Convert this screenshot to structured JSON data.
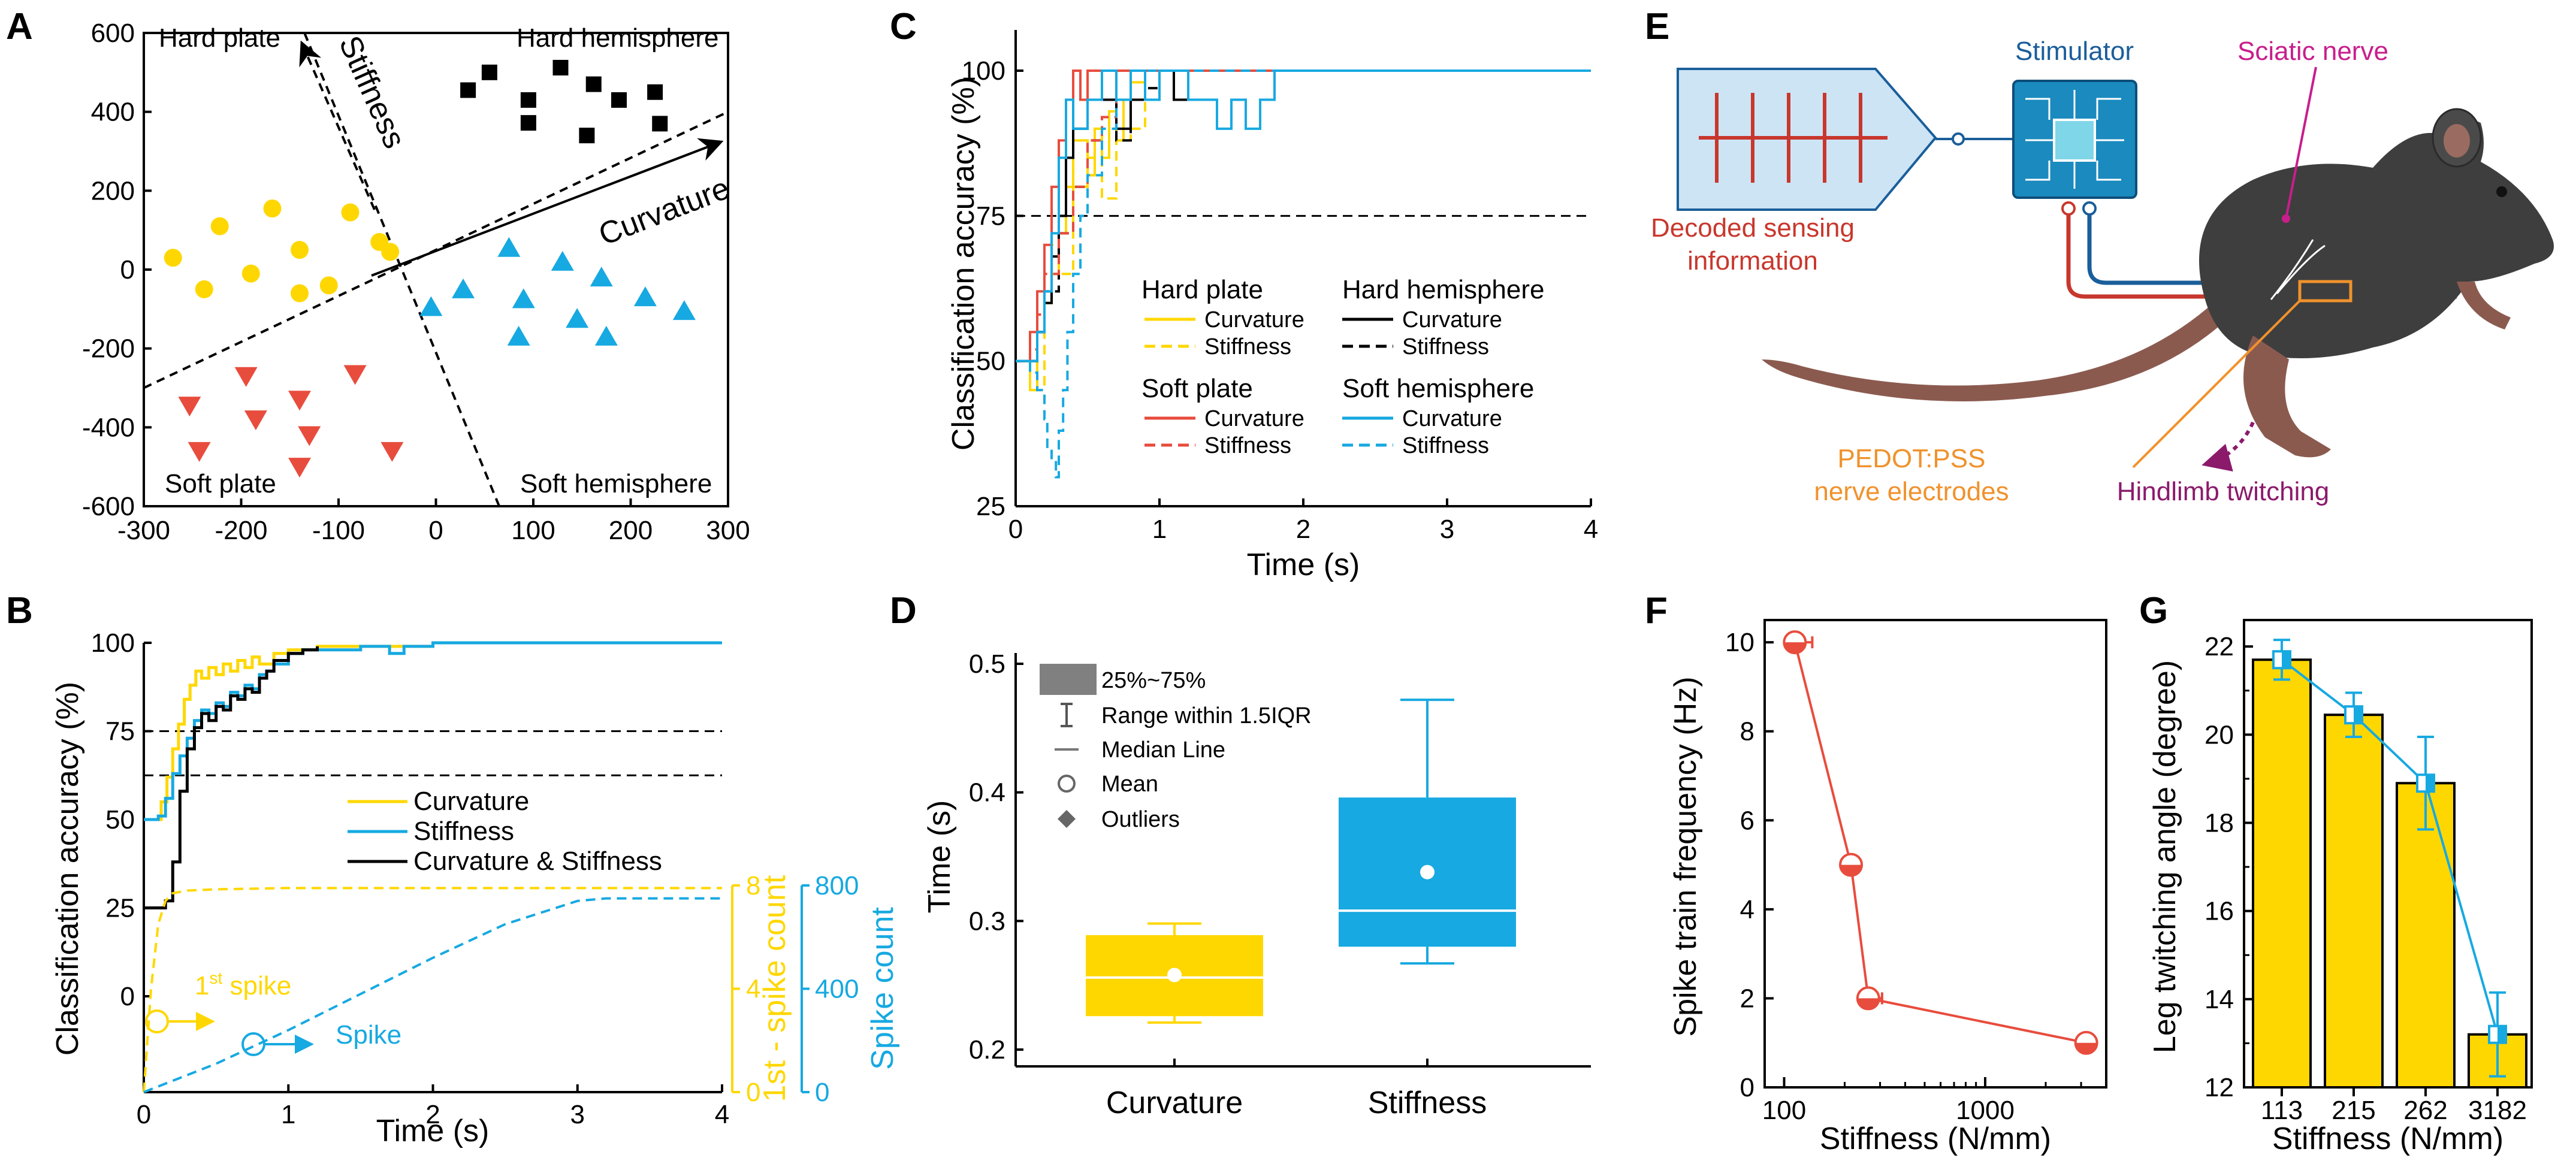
{
  "colors": {
    "hard_plate": "#FFD700",
    "hard_hemisphere": "#000000",
    "soft_plate": "#E84C3D",
    "soft_hemisphere": "#17A9E1",
    "orange": "#F0922C",
    "stim_blue": "#1A5E9A",
    "nerve_magenta": "#C81E8C",
    "twitch_purple": "#8B1A6B",
    "decoded_red": "#C8372D"
  },
  "panel_labels": {
    "a": "A",
    "b": "B",
    "c": "C",
    "d": "D",
    "e": "E",
    "f": "F",
    "g": "G"
  },
  "chart_data": [
    {
      "panel": "A",
      "type": "scatter",
      "xlim": [
        -300,
        300
      ],
      "ylim": [
        -600,
        600
      ],
      "xticks": [
        "-300",
        "-200",
        "-100",
        "0",
        "100",
        "200",
        "300"
      ],
      "yticks": [
        "-600",
        "-400",
        "-200",
        "0",
        "200",
        "400",
        "600"
      ],
      "labels": {
        "hard_plate": "Hard plate",
        "hard_hemisphere": "Hard hemisphere",
        "soft_plate": "Soft plate",
        "soft_hemisphere": "Soft hemisphere",
        "stiffness_axis": "Stiffness",
        "curvature_axis": "Curvature"
      },
      "series": [
        {
          "key": "hard_plate",
          "marker": "circle",
          "x": [
            -270,
            -222,
            -168,
            -140,
            -88,
            -58,
            -238,
            -140,
            -190,
            -110,
            -47
          ],
          "y": [
            30,
            110,
            155,
            50,
            145,
            70,
            -50,
            -60,
            -10,
            -40,
            45
          ]
        },
        {
          "key": "hard_hemisphere",
          "marker": "square",
          "x": [
            33,
            55,
            95,
            128,
            155,
            188,
            225,
            230,
            162,
            95
          ],
          "y": [
            455,
            500,
            372,
            512,
            340,
            430,
            450,
            370,
            470,
            430
          ]
        },
        {
          "key": "soft_plate",
          "marker": "triangle-down",
          "x": [
            -195,
            -253,
            -140,
            -83,
            -243,
            -185,
            -130,
            -45,
            -140
          ],
          "y": [
            -270,
            -345,
            -330,
            -265,
            -460,
            -380,
            -420,
            -460,
            -500
          ]
        },
        {
          "key": "soft_hemisphere",
          "marker": "triangle-up",
          "x": [
            75,
            130,
            170,
            -5,
            28,
            90,
            145,
            215,
            85,
            175,
            255
          ],
          "y": [
            55,
            20,
            -20,
            -95,
            -50,
            -75,
            -125,
            -70,
            -170,
            -170,
            -105
          ]
        }
      ],
      "dividers": [
        {
          "x": [
            -300,
            300
          ],
          "y": [
            -300,
            400
          ]
        },
        {
          "x": [
            -135,
            65
          ],
          "y": [
            600,
            -600
          ]
        }
      ]
    },
    {
      "panel": "B",
      "type": "line",
      "xlabel": "Time (s)",
      "ylabel": "Classification accuracy (%)",
      "ylabel_right1": "1st - spike count",
      "ylabel_right2": "Spike count",
      "xlim": [
        0,
        4
      ],
      "xticks": [
        "0",
        "1",
        "2",
        "3",
        "4"
      ],
      "yticks": [
        "0",
        "25",
        "50",
        "75",
        "100"
      ],
      "right1_ticks": [
        "0",
        "4",
        "8"
      ],
      "right2_ticks": [
        "0",
        "400",
        "800"
      ],
      "hlines": [
        75,
        62.5
      ],
      "legend": [
        "Curvature",
        "Stiffness",
        "Curvature & Stiffness"
      ],
      "series": [
        {
          "name": "Curvature",
          "x": [
            0,
            0.08,
            0.12,
            0.16,
            0.2,
            0.24,
            0.28,
            0.32,
            0.36,
            0.4,
            0.45,
            0.5,
            0.55,
            0.6,
            0.65,
            0.7,
            0.75,
            0.8,
            0.9,
            1.0,
            1.2,
            1.5,
            2.0,
            3.0,
            4.0
          ],
          "y": [
            50,
            50,
            55,
            62,
            70,
            77,
            84,
            88,
            92,
            90,
            93,
            91,
            94,
            92,
            95,
            93,
            96,
            94,
            97,
            98,
            99,
            99,
            100,
            100,
            100
          ]
        },
        {
          "name": "Stiffness",
          "x": [
            0,
            0.1,
            0.15,
            0.2,
            0.25,
            0.3,
            0.35,
            0.4,
            0.45,
            0.5,
            0.55,
            0.6,
            0.65,
            0.7,
            0.75,
            0.8,
            0.85,
            0.9,
            1.0,
            1.1,
            1.2,
            1.5,
            1.7,
            1.8,
            2.0,
            2.5,
            3.0,
            4.0
          ],
          "y": [
            50,
            51,
            56,
            63,
            68,
            73,
            78,
            81,
            80,
            83,
            82,
            86,
            85,
            88,
            87,
            91,
            92,
            94,
            97,
            98,
            98,
            99,
            97,
            99,
            100,
            100,
            100,
            100
          ]
        },
        {
          "name": "Curvature & Stiffness",
          "x": [
            0,
            0.1,
            0.15,
            0.2,
            0.25,
            0.3,
            0.35,
            0.4,
            0.45,
            0.5,
            0.55,
            0.6,
            0.65,
            0.7,
            0.75,
            0.8,
            0.85,
            0.9,
            1.0,
            1.1,
            1.2
          ],
          "y": [
            25,
            25,
            27,
            38,
            58,
            70,
            76,
            80,
            78,
            82,
            81,
            85,
            84,
            87,
            86,
            90,
            92,
            95,
            97,
            98,
            99
          ]
        }
      ],
      "first_spike_curve": {
        "name": "1st spike",
        "x": [
          0,
          0.05,
          0.1,
          0.15,
          0.2,
          0.3,
          0.5,
          1.0,
          2.0,
          3.0,
          4.0
        ],
        "y": [
          0,
          4.0,
          6.5,
          7.4,
          7.7,
          7.8,
          7.85,
          7.9,
          7.9,
          7.9,
          7.9
        ]
      },
      "spike_curve": {
        "name": "Spike",
        "x": [
          0,
          0.5,
          1.0,
          1.5,
          2.0,
          2.5,
          3.0,
          3.2,
          4.0
        ],
        "y": [
          0,
          110,
          240,
          380,
          520,
          650,
          740,
          750,
          750
        ]
      },
      "annotations": {
        "first_spike": "1",
        "first_spike_sup": "st",
        "first_spike_rest": " spike",
        "spike": "Spike"
      }
    },
    {
      "panel": "C",
      "type": "line",
      "xlabel": "Time (s)",
      "ylabel": "Classification accuracy (%)",
      "xlim": [
        0,
        4
      ],
      "ylim": [
        25,
        100
      ],
      "xticks": [
        "0",
        "1",
        "2",
        "3",
        "4"
      ],
      "yticks": [
        "25",
        "50",
        "75",
        "100"
      ],
      "hline": 75,
      "legend_groups": [
        {
          "title": "Hard plate",
          "curv": "Curvature",
          "stiff": "Stiffness",
          "color_key": "hard_plate"
        },
        {
          "title": "Hard hemisphere",
          "curv": "Curvature",
          "stiff": "Stiffness",
          "color_key": "hard_hemisphere"
        },
        {
          "title": "Soft plate",
          "curv": "Curvature",
          "stiff": "Stiffness",
          "color_key": "soft_plate"
        },
        {
          "title": "Soft hemisphere",
          "curv": "Curvature",
          "stiff": "Stiffness",
          "color_key": "soft_hemisphere"
        }
      ],
      "series": [
        {
          "name": "Hard plate Curvature",
          "color_key": "hard_plate",
          "dash": false,
          "x": [
            0,
            0.1,
            0.15,
            0.2,
            0.25,
            0.3,
            0.35,
            0.4,
            0.5,
            0.55,
            0.6,
            0.65,
            0.7,
            0.75,
            0.8,
            0.9,
            1.0,
            1.1,
            4.0
          ],
          "y": [
            50,
            45,
            55,
            60,
            65,
            72,
            80,
            88,
            82,
            90,
            85,
            93,
            88,
            95,
            98,
            95,
            100,
            100,
            100
          ]
        },
        {
          "name": "Hard plate Stiffness",
          "color_key": "hard_plate",
          "dash": true,
          "x": [
            0,
            0.1,
            0.2,
            0.25,
            0.3,
            0.4,
            0.5,
            0.6,
            0.7,
            0.8,
            0.9,
            1.0,
            4.0
          ],
          "y": [
            50,
            45,
            60,
            70,
            65,
            80,
            85,
            78,
            88,
            90,
            95,
            100,
            100
          ]
        },
        {
          "name": "Hard hemisphere Curvature",
          "color_key": "hard_hemisphere",
          "dash": false,
          "x": [
            0,
            0.1,
            0.15,
            0.2,
            0.25,
            0.3,
            0.35,
            0.4,
            0.5,
            0.6,
            0.7,
            0.8,
            0.9,
            1.0,
            1.1,
            1.2,
            1.3,
            4.0
          ],
          "y": [
            50,
            50,
            55,
            60,
            68,
            75,
            85,
            90,
            95,
            95,
            90,
            95,
            95,
            100,
            95,
            100,
            100,
            100
          ]
        },
        {
          "name": "Hard hemisphere Stiffness",
          "color_key": "hard_hemisphere",
          "dash": true,
          "x": [
            0,
            0.15,
            0.2,
            0.3,
            0.4,
            0.5,
            0.6,
            0.7,
            0.8,
            0.9,
            1.0,
            4.0
          ],
          "y": [
            50,
            55,
            62,
            72,
            80,
            88,
            92,
            88,
            95,
            97,
            100,
            100
          ]
        },
        {
          "name": "Soft plate Curvature",
          "color_key": "soft_plate",
          "dash": false,
          "x": [
            0,
            0.05,
            0.1,
            0.15,
            0.2,
            0.25,
            0.3,
            0.35,
            0.4,
            0.45,
            0.5,
            4.0
          ],
          "y": [
            50,
            50,
            55,
            62,
            70,
            80,
            88,
            95,
            100,
            95,
            100,
            100
          ]
        },
        {
          "name": "Soft plate Stiffness",
          "color_key": "soft_plate",
          "dash": true,
          "x": [
            0,
            0.1,
            0.15,
            0.2,
            0.3,
            0.4,
            0.5,
            0.6,
            0.7,
            0.8,
            4.0
          ],
          "y": [
            50,
            52,
            58,
            65,
            72,
            80,
            88,
            92,
            95,
            100,
            100
          ]
        },
        {
          "name": "Soft hemisphere Curvature",
          "color_key": "soft_hemisphere",
          "dash": false,
          "x": [
            0,
            0.1,
            0.15,
            0.2,
            0.25,
            0.3,
            0.35,
            0.4,
            0.5,
            0.6,
            0.7,
            0.8,
            0.9,
            1.0,
            1.2,
            1.4,
            1.5,
            1.6,
            1.7,
            1.8,
            4.0
          ],
          "y": [
            50,
            50,
            55,
            62,
            72,
            85,
            95,
            90,
            95,
            100,
            95,
            100,
            95,
            100,
            95,
            90,
            95,
            90,
            95,
            100,
            100
          ]
        },
        {
          "name": "Soft hemisphere Stiffness",
          "color_key": "soft_hemisphere",
          "dash": true,
          "x": [
            0,
            0.1,
            0.15,
            0.2,
            0.22,
            0.25,
            0.28,
            0.3,
            0.33,
            0.36,
            0.4,
            0.45,
            0.5,
            0.6,
            0.7,
            0.8,
            4.0
          ],
          "y": [
            50,
            48,
            45,
            40,
            35,
            33,
            30,
            38,
            45,
            55,
            65,
            75,
            82,
            90,
            95,
            100,
            100
          ]
        }
      ]
    },
    {
      "panel": "D",
      "type": "box",
      "ylabel": "Time (s)",
      "ylim": [
        0.2,
        0.5
      ],
      "yticks": [
        "0.2",
        "0.3",
        "0.4",
        "0.5"
      ],
      "categories": [
        "Curvature",
        "Stiffness"
      ],
      "boxes": [
        {
          "name": "Curvature",
          "color_key": "hard_plate",
          "q1": 0.226,
          "median": 0.256,
          "q3": 0.289,
          "whisker_low": 0.221,
          "whisker_high": 0.298,
          "mean": 0.258
        },
        {
          "name": "Stiffness",
          "color_key": "soft_hemisphere",
          "q1": 0.28,
          "median": 0.308,
          "q3": 0.396,
          "whisker_low": 0.267,
          "whisker_high": 0.472,
          "mean": 0.338
        }
      ],
      "legend": {
        "box": "25%~75%",
        "range": "Range within 1.5IQR",
        "median": "Median Line",
        "mean": "Mean",
        "outliers": "Outliers"
      }
    },
    {
      "panel": "F",
      "type": "line",
      "xlabel": "Stiffness (N/mm)",
      "ylabel": "Spike train frequency (Hz)",
      "xscale": "log",
      "xlim": [
        80,
        4000
      ],
      "ylim": [
        0,
        10.5
      ],
      "xticks": [
        "100",
        "1000"
      ],
      "yticks": [
        "0",
        "2",
        "4",
        "6",
        "8",
        "10"
      ],
      "x": [
        113,
        215,
        262,
        3182
      ],
      "y": [
        10,
        5,
        2,
        1
      ],
      "xerr": [
        25,
        8,
        45,
        80
      ]
    },
    {
      "panel": "G",
      "type": "bar",
      "xlabel": "Stiffness (N/mm)",
      "ylabel": "Leg twitching angle (degree)",
      "ylim": [
        12,
        22.6
      ],
      "yticks": [
        "12",
        "14",
        "16",
        "18",
        "20",
        "22"
      ],
      "categories": [
        "113",
        "215",
        "262",
        "3182"
      ],
      "values": [
        21.7,
        20.45,
        18.9,
        13.2
      ],
      "errors": [
        0.45,
        0.5,
        1.05,
        0.95
      ]
    }
  ],
  "panel_e": {
    "stimulator": "Stimulator",
    "sciatic": "Sciatic nerve",
    "decoded_line1": "Decoded sensing",
    "decoded_line2": "information",
    "pedot_line1": "PEDOT:PSS",
    "pedot_line2": "nerve electrodes",
    "twitch": "Hindlimb twitching"
  }
}
